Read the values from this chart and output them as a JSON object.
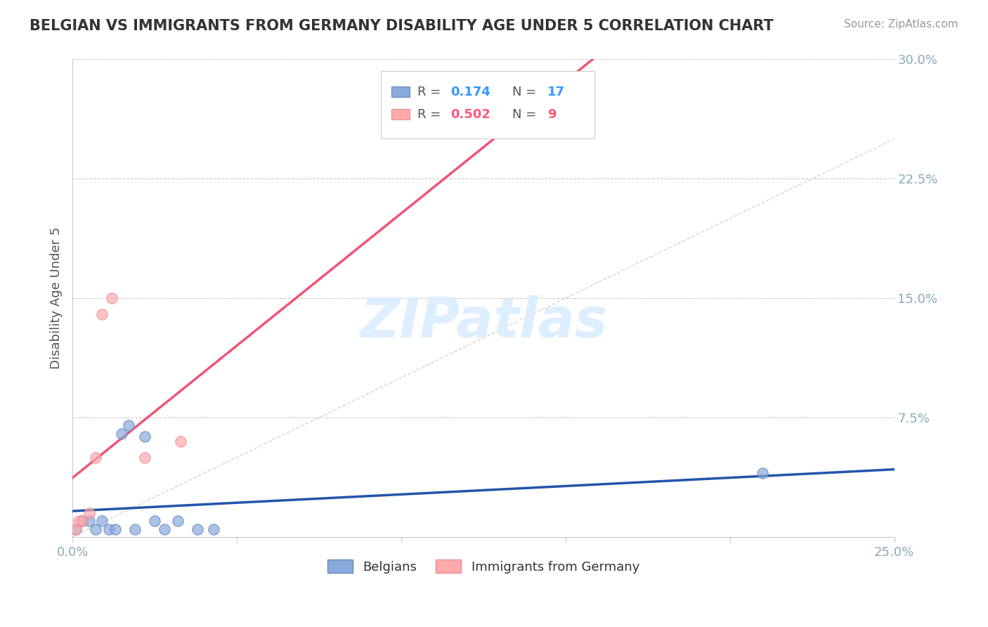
{
  "title": "BELGIAN VS IMMIGRANTS FROM GERMANY DISABILITY AGE UNDER 5 CORRELATION CHART",
  "source": "Source: ZipAtlas.com",
  "ylabel": "Disability Age Under 5",
  "xlim": [
    0.0,
    0.25
  ],
  "ylim": [
    0.0,
    0.3
  ],
  "x_ticks": [
    0.0,
    0.05,
    0.1,
    0.15,
    0.2,
    0.25
  ],
  "y_ticks": [
    0.0,
    0.075,
    0.15,
    0.225,
    0.3
  ],
  "belgians_x": [
    0.001,
    0.003,
    0.005,
    0.007,
    0.009,
    0.011,
    0.013,
    0.015,
    0.017,
    0.019,
    0.022,
    0.025,
    0.028,
    0.032,
    0.038,
    0.043,
    0.21
  ],
  "belgians_y": [
    0.005,
    0.01,
    0.01,
    0.005,
    0.01,
    0.005,
    0.005,
    0.065,
    0.07,
    0.005,
    0.063,
    0.01,
    0.005,
    0.01,
    0.005,
    0.005,
    0.04
  ],
  "immigrants_x": [
    0.001,
    0.002,
    0.003,
    0.005,
    0.007,
    0.009,
    0.012,
    0.022,
    0.033
  ],
  "immigrants_y": [
    0.005,
    0.01,
    0.01,
    0.015,
    0.05,
    0.14,
    0.15,
    0.05,
    0.06
  ],
  "belgian_R": 0.174,
  "belgian_N": 17,
  "immigrant_R": 0.502,
  "immigrant_N": 9,
  "belgian_color": "#88AADD",
  "immigrant_color": "#FFAAAA",
  "belgian_edge_color": "#6688BB",
  "immigrant_edge_color": "#EE8899",
  "belgian_line_color": "#2255AA",
  "immigrant_line_color": "#EE5577",
  "diagonal_color": "#CCCCCC",
  "watermark_color": "#DDEEFF",
  "background_color": "#FFFFFF",
  "grid_color": "#CCCCCC",
  "axis_tick_color": "#88AABB",
  "legend_R_color_blue": "#3399FF",
  "legend_R_color_pink": "#FF5577",
  "title_color": "#333333",
  "source_color": "#999999",
  "ylabel_color": "#555555"
}
